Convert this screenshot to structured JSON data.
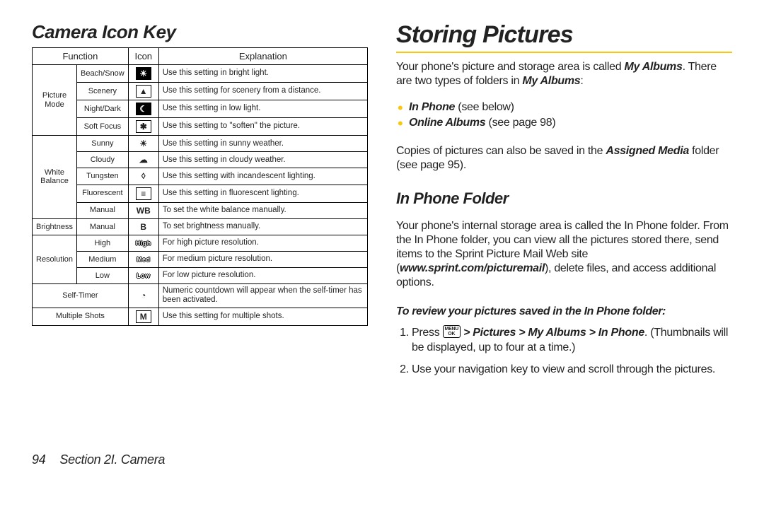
{
  "colors": {
    "rule": "#f9c80e",
    "bullet": "#f9c80e",
    "text": "#222222"
  },
  "left": {
    "title": "Camera Icon Key",
    "headers": {
      "function": "Function",
      "icon": "Icon",
      "explanation": "Explanation"
    },
    "groups": [
      {
        "name": "Picture\nMode",
        "rows": [
          {
            "sub": "Beach/Snow",
            "glyph": "☀",
            "style": "rev",
            "exp": "Use this setting in bright light."
          },
          {
            "sub": "Scenery",
            "glyph": "▲",
            "style": "box",
            "exp": "Use this setting for scenery from a distance."
          },
          {
            "sub": "Night/Dark",
            "glyph": "☾",
            "style": "rev",
            "exp": "Use this setting in low light."
          },
          {
            "sub": "Soft Focus",
            "glyph": "✱",
            "style": "box",
            "exp": "Use this setting to \"soften\" the picture."
          }
        ]
      },
      {
        "name": "White\nBalance",
        "rows": [
          {
            "sub": "Sunny",
            "glyph": "☀",
            "style": "plain",
            "exp": "Use this setting in sunny weather."
          },
          {
            "sub": "Cloudy",
            "glyph": "☁",
            "style": "plain",
            "exp": "Use this setting in cloudy weather."
          },
          {
            "sub": "Tungsten",
            "glyph": "◊",
            "style": "plain",
            "exp": "Use this setting with incandescent lighting."
          },
          {
            "sub": "Fluorescent",
            "glyph": "≡",
            "style": "box",
            "exp": "Use this setting in fluorescent lighting."
          },
          {
            "sub": "Manual",
            "glyph": "WB",
            "style": "plain",
            "exp": "To set the white balance manually."
          }
        ]
      },
      {
        "name": "Brightness",
        "rows": [
          {
            "sub": "Manual",
            "glyph": "B",
            "style": "plain",
            "exp": "To set brightness manually."
          }
        ]
      },
      {
        "name": "Resolution",
        "rows": [
          {
            "sub": "High",
            "glyph": "High",
            "style": "reslabel",
            "exp": "For high picture resolution."
          },
          {
            "sub": "Medium",
            "glyph": "Med",
            "style": "reslabel",
            "exp": "For medium picture resolution."
          },
          {
            "sub": "Low",
            "glyph": "Low",
            "style": "reslabel",
            "exp": "For low picture resolution."
          }
        ]
      },
      {
        "name": "",
        "rows": [
          {
            "sub": "Self-Timer",
            "span2": true,
            "glyph": "◔",
            "style": "plain",
            "exp": "Numeric countdown will appear when the self-timer has been activated."
          },
          {
            "sub": "Multiple Shots",
            "span2": true,
            "glyph": "M",
            "style": "box",
            "exp": "Use this setting for multiple shots."
          }
        ]
      }
    ]
  },
  "right": {
    "title": "Storing Pictures",
    "intro_a": "Your phone's picture and storage area is called ",
    "intro_b": "My Albums",
    "intro_c": ". There are two types of folders in ",
    "intro_d": "My Albums",
    "intro_e": ":",
    "bullets": [
      {
        "bold": "In Phone",
        "rest": " (see below)"
      },
      {
        "bold": "Online Albums",
        "rest": " (see page 98)"
      }
    ],
    "copies_a": "Copies of pictures can also be saved in the ",
    "copies_b": "Assigned Media",
    "copies_c": " folder (see page 95).",
    "sub_head": "In Phone Folder",
    "para2_a": "Your phone's internal storage area is called the In Phone folder. From the In Phone folder, you can view all the pictures stored there, send items to the Sprint Picture Mail Web site (",
    "para2_url": "www.sprint.com/picturemail",
    "para2_b": "), delete files, and access additional options.",
    "procedure_title": "To review your pictures saved in the In Phone folder:",
    "steps": {
      "s1_a": "Press ",
      "s1_key_top": "MENU",
      "s1_key_bot": "OK",
      "s1_b": " > Pictures > My Albums > In Phone",
      "s1_c": ". (Thumbnails will be displayed, up to four at a time.)",
      "s2": "Use your navigation key to view and scroll through the pictures."
    }
  },
  "footer": {
    "page": "94",
    "section": "Section 2I. Camera"
  }
}
